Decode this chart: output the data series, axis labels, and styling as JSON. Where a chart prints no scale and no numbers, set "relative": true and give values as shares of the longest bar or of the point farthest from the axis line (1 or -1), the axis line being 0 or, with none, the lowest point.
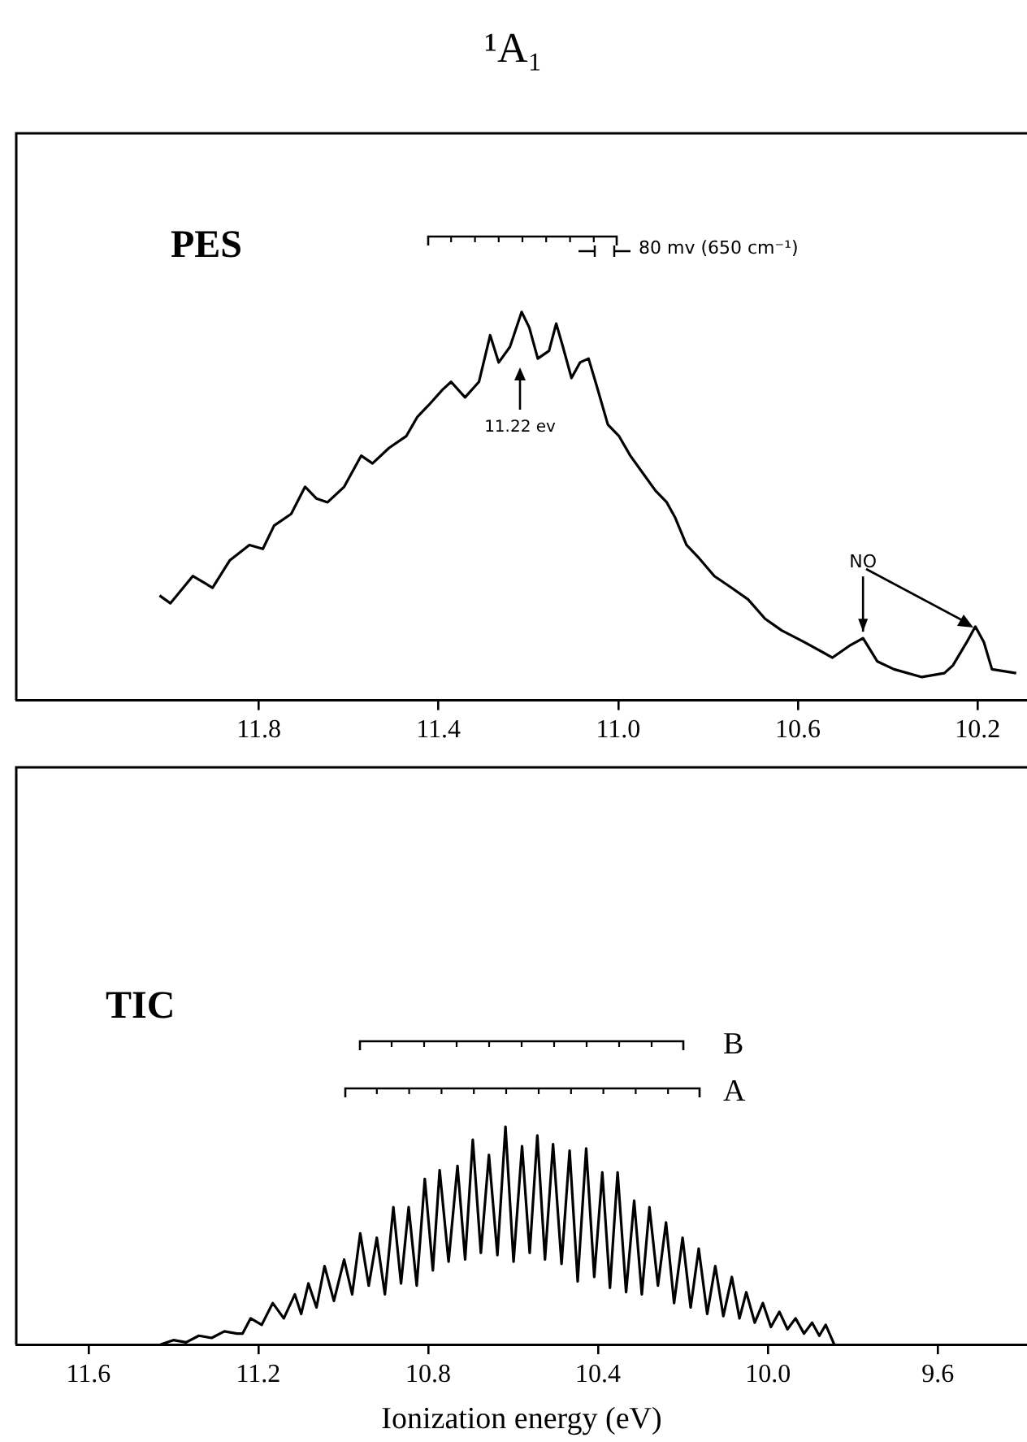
{
  "chart_data": [
    {
      "type": "line",
      "title": "¹A₁",
      "xlim": [
        12.34,
        10.09
      ],
      "xticks": [
        11.8,
        11.4,
        {
          "value": 11.0,
          "label": "11.0"
        },
        10.6,
        10.2
      ],
      "relative": true,
      "legend": false,
      "grid": false,
      "marker": "none",
      "series": [
        {
          "color": "#000000",
          "x": [
            12.021,
            11.997,
            11.947,
            11.903,
            11.865,
            11.821,
            11.791,
            11.766,
            11.728,
            11.697,
            11.672,
            11.647,
            11.61,
            11.572,
            11.547,
            11.51,
            11.472,
            11.447,
            11.422,
            11.391,
            11.372,
            11.341,
            11.31,
            11.285,
            11.266,
            11.241,
            11.215,
            11.198,
            11.179,
            11.154,
            11.138,
            11.123,
            11.104,
            11.085,
            11.066,
            11.048,
            11.023,
            10.998,
            10.973,
            10.942,
            10.917,
            10.892,
            10.873,
            10.848,
            10.823,
            10.786,
            10.748,
            10.711,
            10.673,
            10.636,
            10.586,
            10.523,
            10.486,
            10.455,
            10.423,
            10.386,
            10.324,
            10.274,
            10.255,
            10.224,
            10.205,
            10.186,
            10.168,
            10.114
          ],
          "values": [
            0.27,
            0.25,
            0.32,
            0.29,
            0.36,
            0.4,
            0.39,
            0.45,
            0.48,
            0.55,
            0.52,
            0.51,
            0.55,
            0.63,
            0.61,
            0.65,
            0.68,
            0.73,
            0.76,
            0.8,
            0.82,
            0.78,
            0.82,
            0.94,
            0.87,
            0.91,
            1,
            0.96,
            0.88,
            0.9,
            0.97,
            0.91,
            0.83,
            0.87,
            0.88,
            0.81,
            0.71,
            0.68,
            0.63,
            0.58,
            0.54,
            0.51,
            0.47,
            0.4,
            0.37,
            0.32,
            0.29,
            0.26,
            0.21,
            0.18,
            0.15,
            0.11,
            0.14,
            0.16,
            0.1,
            0.08,
            0.06,
            0.07,
            0.09,
            0.15,
            0.19,
            0.15,
            0.08,
            0.07
          ]
        }
      ],
      "annotations": [
        "PES",
        "80 mv (650 cm⁻¹)",
        "11.22 ev",
        {
          "text": "NO",
          "x": 10.455,
          "y": 0.16
        }
      ]
    },
    {
      "type": "line",
      "xlabel": "Ionization energy (eV)",
      "xlim": [
        11.77,
        9.39
      ],
      "xticks": [
        11.6,
        11.2,
        10.8,
        10.4,
        {
          "value": 10.0,
          "label": "10.0"
        },
        9.6
      ],
      "relative": true,
      "legend": false,
      "grid": false,
      "marker": "none",
      "series": [
        {
          "color": "#000000",
          "x": [
            11.43,
            11.4,
            11.37,
            11.34,
            11.31,
            11.28,
            11.25,
            11.237,
            11.218,
            11.192,
            11.166,
            11.14,
            11.114,
            11.099,
            11.082,
            11.063,
            11.044,
            11.022,
            10.998,
            10.979,
            10.96,
            10.94,
            10.921,
            10.902,
            10.882,
            10.864,
            10.846,
            10.827,
            10.808,
            10.789,
            10.773,
            10.752,
            10.731,
            10.713,
            10.695,
            10.676,
            10.657,
            10.637,
            10.618,
            10.599,
            10.579,
            10.561,
            10.543,
            10.525,
            10.506,
            10.486,
            10.467,
            10.448,
            10.428,
            10.409,
            10.39,
            10.372,
            10.354,
            10.334,
            10.315,
            10.297,
            10.279,
            10.259,
            10.24,
            10.221,
            10.201,
            10.182,
            10.163,
            10.143,
            10.124,
            10.105,
            10.085,
            10.067,
            10.051,
            10.031,
            10.012,
            9.993,
            9.973,
            9.954,
            9.935,
            9.915,
            9.896,
            9.879,
            9.864,
            9.844
          ],
          "values": [
            0,
            0.02,
            0.01,
            0.04,
            0.03,
            0.06,
            0.05,
            0.05,
            0.12,
            0.09,
            0.19,
            0.12,
            0.23,
            0.14,
            0.28,
            0.17,
            0.36,
            0.2,
            0.39,
            0.23,
            0.51,
            0.27,
            0.49,
            0.23,
            0.63,
            0.28,
            0.63,
            0.27,
            0.76,
            0.34,
            0.8,
            0.38,
            0.82,
            0.39,
            0.94,
            0.42,
            0.87,
            0.41,
            1,
            0.38,
            0.91,
            0.42,
            0.96,
            0.39,
            0.92,
            0.37,
            0.89,
            0.29,
            0.9,
            0.31,
            0.79,
            0.26,
            0.79,
            0.24,
            0.66,
            0.23,
            0.63,
            0.27,
            0.56,
            0.19,
            0.49,
            0.17,
            0.44,
            0.14,
            0.36,
            0.13,
            0.31,
            0.12,
            0.24,
            0.1,
            0.19,
            0.08,
            0.15,
            0.07,
            0.12,
            0.05,
            0.1,
            0.04,
            0.09,
            0
          ]
        }
      ],
      "annotations": [
        "TIC",
        "B",
        "A"
      ]
    }
  ]
}
